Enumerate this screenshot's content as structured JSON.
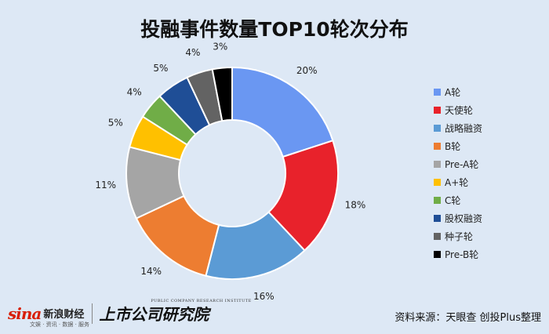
{
  "chart_data": {
    "type": "pie",
    "subtype": "donut",
    "title": "投融事件数量TOP10轮次分布",
    "legend_position": "right",
    "slices": [
      {
        "label": "A轮",
        "value": 20,
        "value_label": "20%",
        "color": "#6a97f2"
      },
      {
        "label": "天使轮",
        "value": 18,
        "value_label": "18%",
        "color": "#e8222b"
      },
      {
        "label": "战略融资",
        "value": 16,
        "value_label": "16%",
        "color": "#5b9bd5"
      },
      {
        "label": "B轮",
        "value": 14,
        "value_label": "14%",
        "color": "#ed7d31"
      },
      {
        "label": "Pre-A轮",
        "value": 11,
        "value_label": "11%",
        "color": "#a5a5a5"
      },
      {
        "label": "A+轮",
        "value": 5,
        "value_label": "5%",
        "color": "#ffc000"
      },
      {
        "label": "C轮",
        "value": 4,
        "value_label": "4%",
        "color": "#70ad47"
      },
      {
        "label": "股权融资",
        "value": 5,
        "value_label": "5%",
        "color": "#1f4e96"
      },
      {
        "label": "种子轮",
        "value": 4,
        "value_label": "4%",
        "color": "#636363"
      },
      {
        "label": "Pre-B轮",
        "value": 3,
        "value_label": "3%",
        "color": "#000000"
      }
    ]
  },
  "footer": {
    "brand_logo": "sina",
    "brand_name": "新浪财经",
    "brand_sub": "文娱 · 资讯 · 数据 · 服务",
    "institute_name": "上市公司研究院",
    "institute_en": "PUBLIC COMPANY RESEARCH INSTITUTE",
    "source": "资料来源：天眼查 创投Plus整理"
  }
}
